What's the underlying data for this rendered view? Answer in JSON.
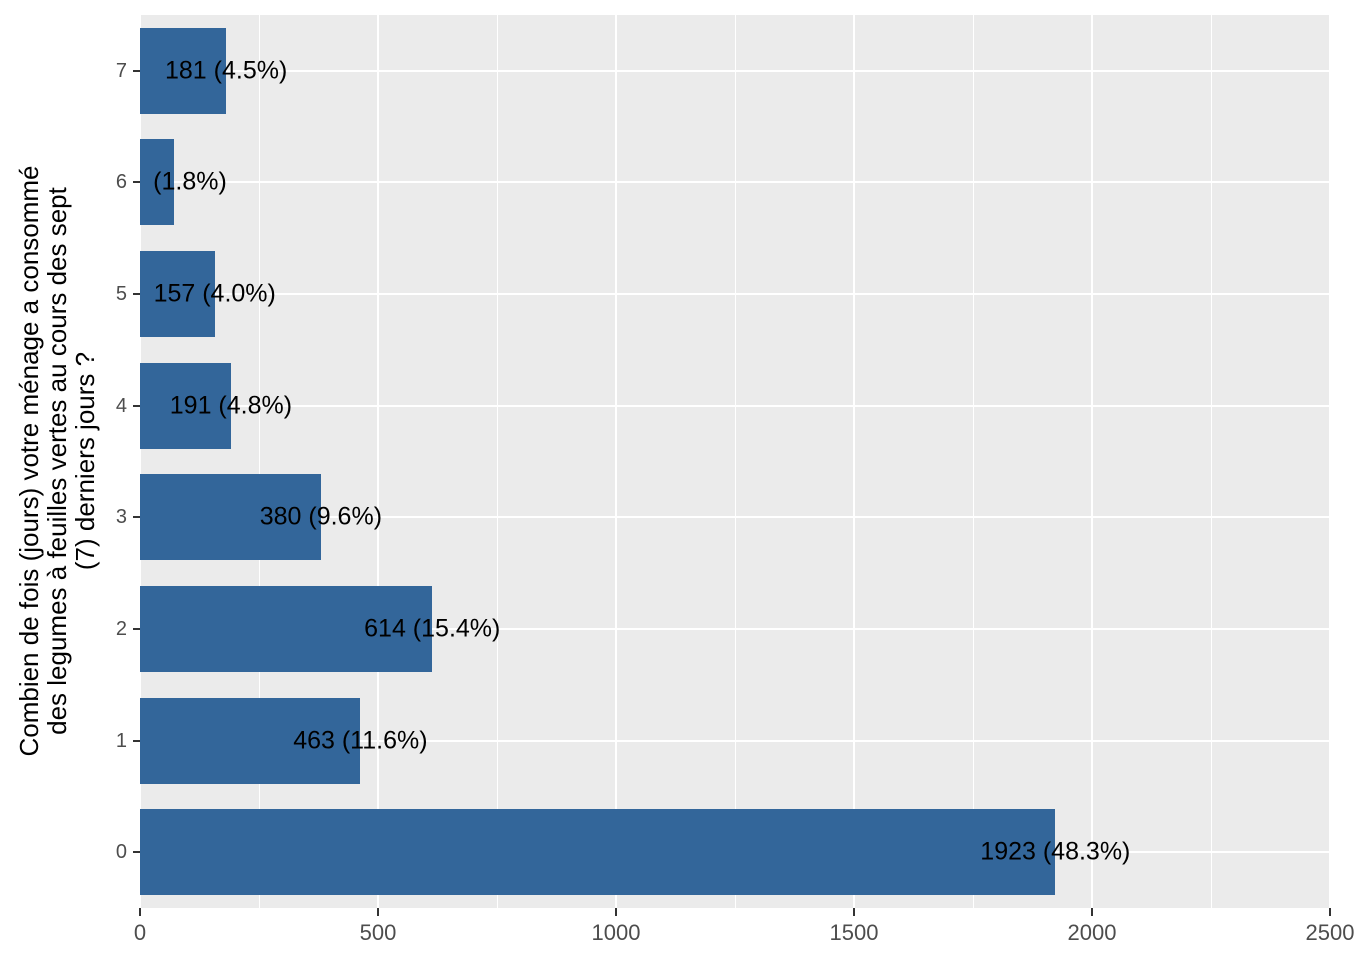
{
  "chart_data": {
    "type": "bar",
    "orientation": "horizontal",
    "title": "",
    "xlabel": "",
    "ylabel": "Combien de fois (jours) votre ménage a consommé des legumes à feuilles vertes au cours des sept (7) derniers jours ?",
    "ylabel_lines": [
      "Combien de fois (jours) votre ménage a consommé",
      "des legumes à feuilles vertes au cours des sept",
      "(7) derniers jours ?"
    ],
    "categories": [
      "7",
      "6",
      "5",
      "4",
      "3",
      "2",
      "1",
      "0"
    ],
    "values": [
      181,
      72,
      157,
      191,
      380,
      614,
      463,
      1923
    ],
    "percentages": [
      4.5,
      1.8,
      4.0,
      4.8,
      9.6,
      15.4,
      11.6,
      48.3
    ],
    "bar_labels": [
      "181 (4.5%)",
      "(1.8%)",
      "157 (4.0%)",
      "191 (4.8%)",
      "380 (9.6%)",
      "614 (15.4%)",
      "463 (11.6%)",
      "1923 (48.3%)"
    ],
    "label_anchor_values": [
      181,
      105,
      157,
      191,
      380,
      614,
      463,
      1923
    ],
    "xlim": [
      0,
      2500
    ],
    "x_ticks": [
      0,
      500,
      1000,
      1500,
      2000,
      2500
    ],
    "x_minor_ticks": [
      250,
      750,
      1250,
      1750,
      2250
    ],
    "grid": true,
    "legend_position": "none",
    "colors": {
      "bar_fill": "#33669A",
      "panel_background": "#EBEBEB",
      "gridline": "#FFFFFF",
      "tick_text": "#4D4D4D",
      "tick_mark": "#333333",
      "bar_label_text": "#000000",
      "axis_title_text": "#000000",
      "page_background": "#FFFFFF"
    }
  }
}
